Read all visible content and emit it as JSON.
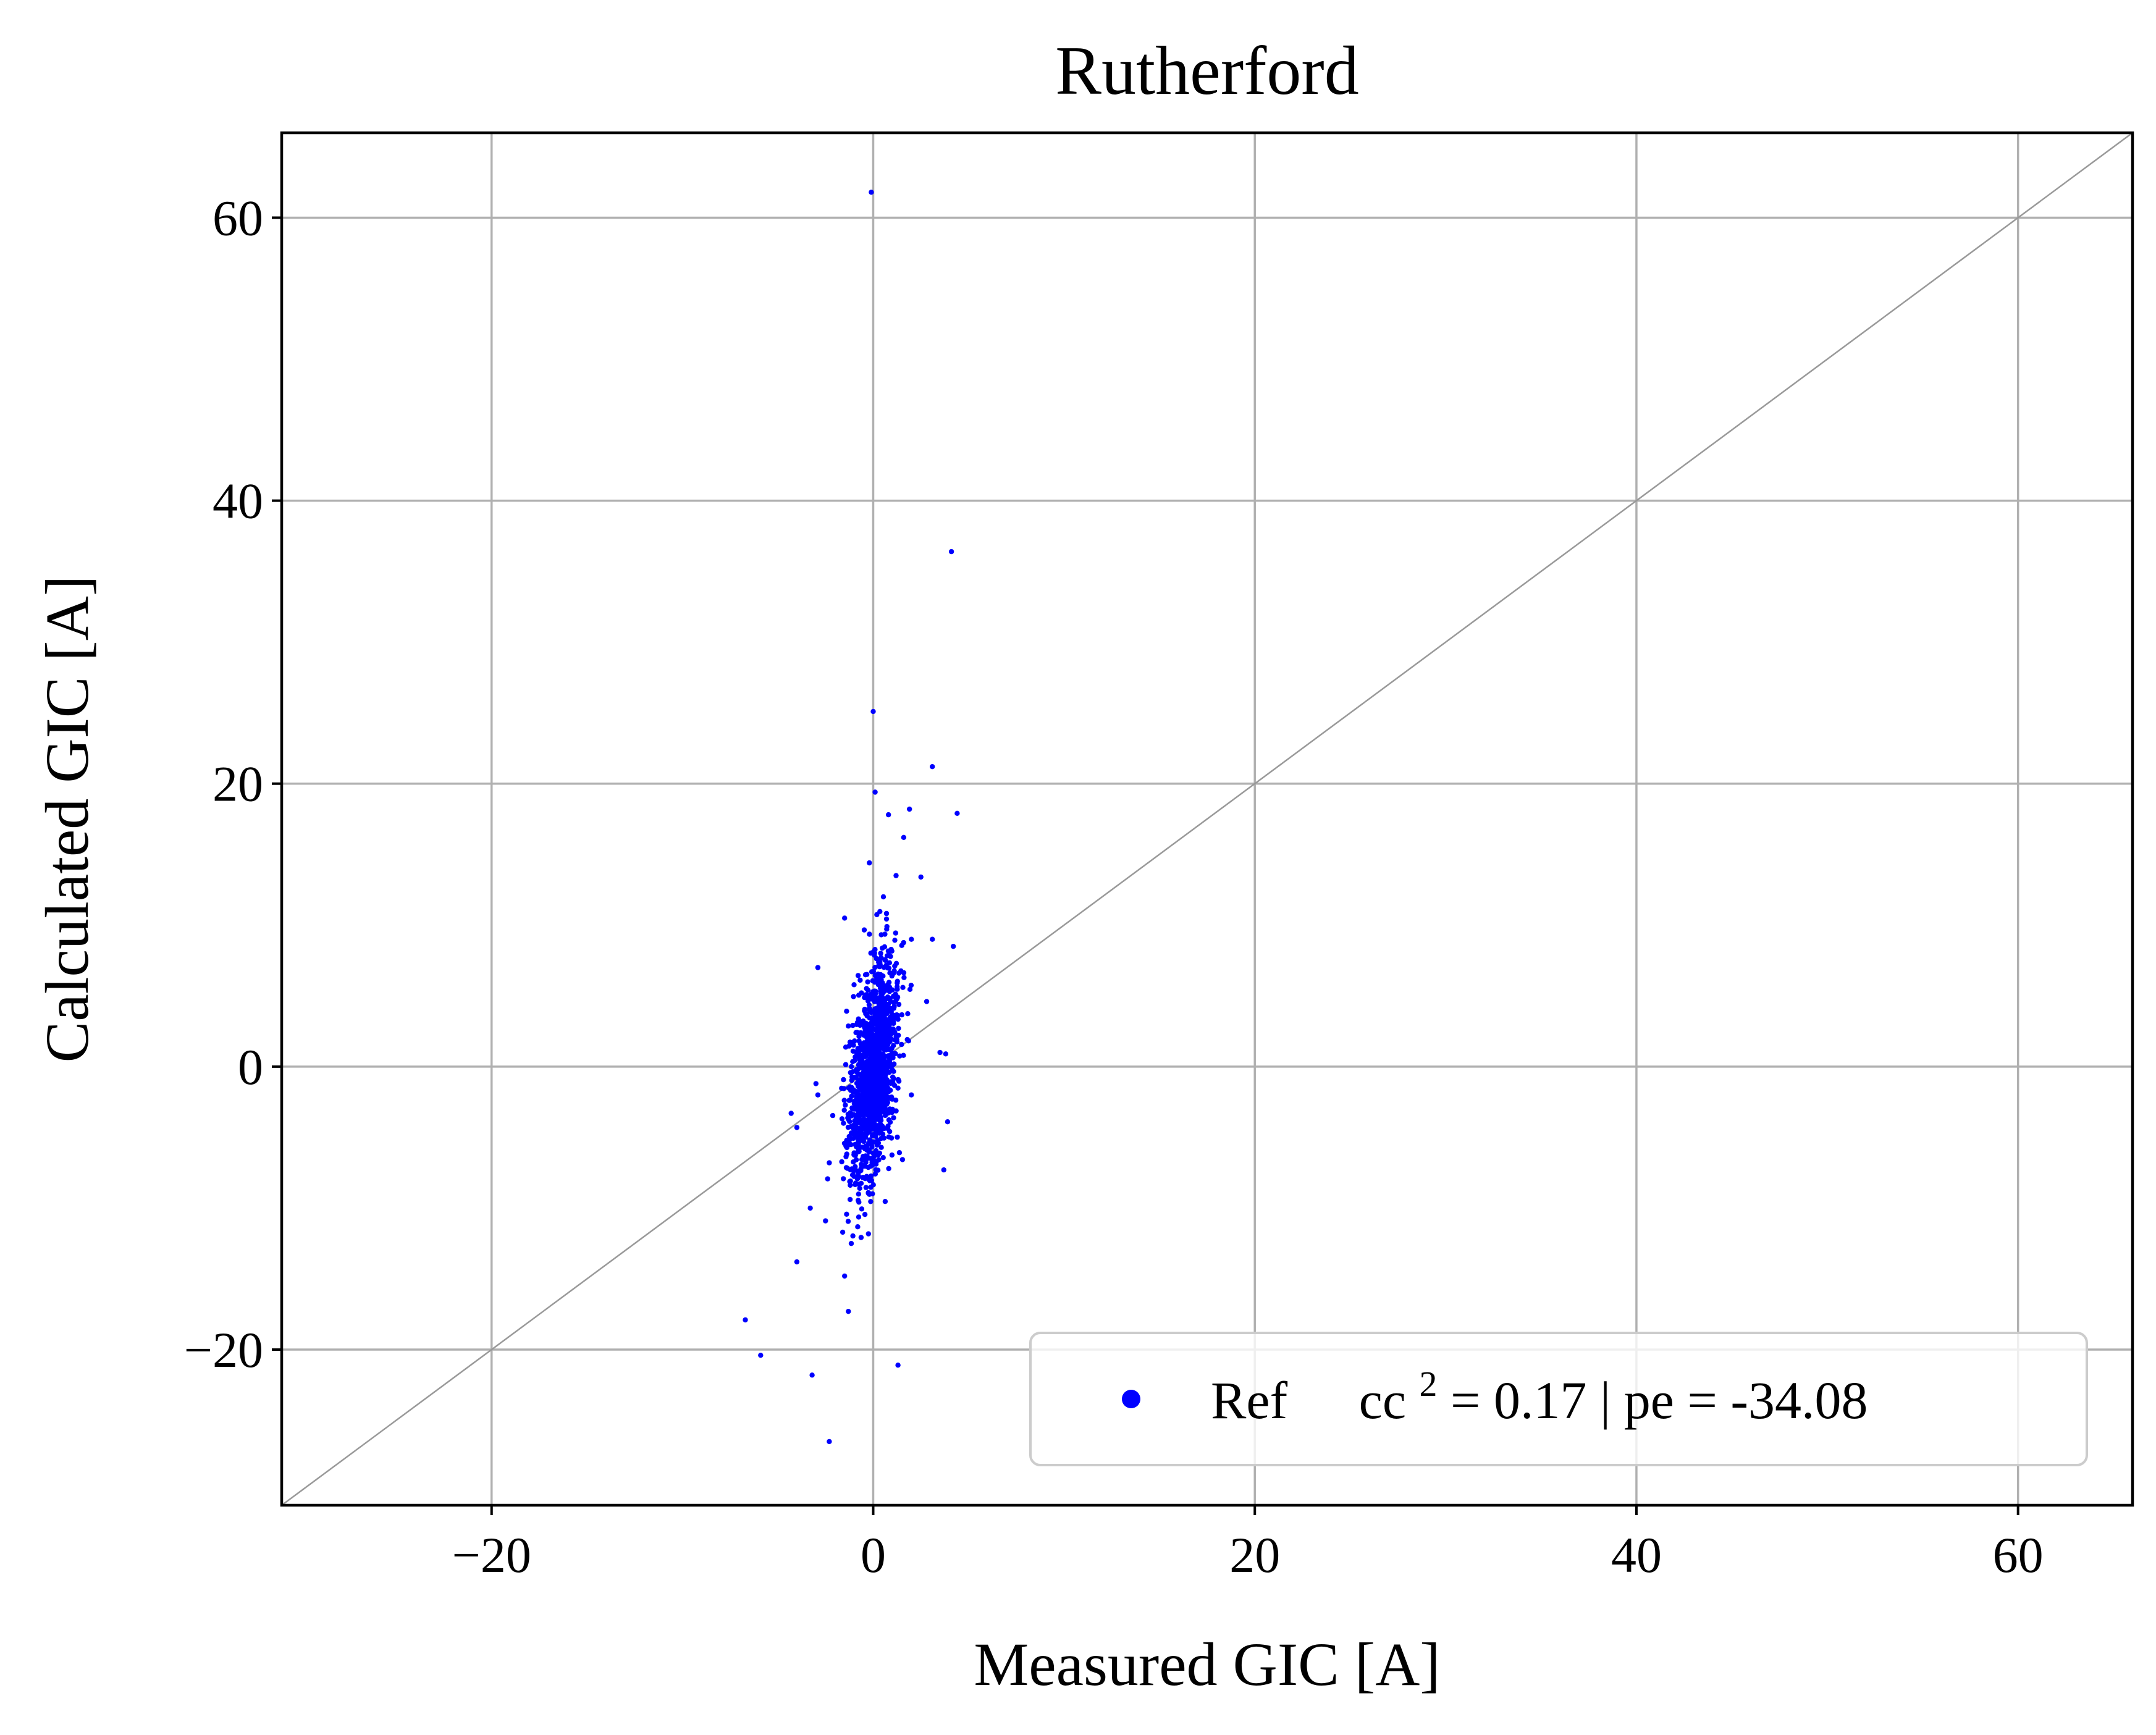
{
  "chart_data": {
    "type": "scatter",
    "title": "Rutherford",
    "xlabel": "Measured GIC [A]",
    "ylabel": "Calculated GIC [A]",
    "xlim": [
      -31,
      66
    ],
    "ylim": [
      -31,
      66
    ],
    "xticks": [
      -20,
      0,
      20,
      40,
      60
    ],
    "yticks": [
      -20,
      0,
      20,
      40,
      60
    ],
    "xtick_labels": [
      "−20",
      "0",
      "20",
      "40",
      "60"
    ],
    "ytick_labels": [
      "−20",
      "0",
      "20",
      "40",
      "60"
    ],
    "grid": true,
    "reference_line": "y = x",
    "legend": {
      "placement": "lower-right",
      "marker_color": "#0000ff",
      "series_label": "Ref",
      "stat_prefix": "cc",
      "stat_superscript": "2",
      "stat_suffix": " = 0.17 | pe = -34.08"
    },
    "series": [
      {
        "name": "Ref",
        "color": "#0000ff",
        "outliers": [
          [
            -0.1,
            61.8
          ],
          [
            4.1,
            36.4
          ],
          [
            0.0,
            25.1
          ],
          [
            3.1,
            21.2
          ],
          [
            4.4,
            17.9
          ],
          [
            0.1,
            19.4
          ],
          [
            1.9,
            18.2
          ],
          [
            0.8,
            17.8
          ],
          [
            1.6,
            16.2
          ],
          [
            -0.2,
            14.4
          ],
          [
            2.5,
            13.4
          ],
          [
            1.2,
            13.5
          ],
          [
            -1.5,
            10.5
          ],
          [
            2.0,
            9.0
          ],
          [
            3.1,
            9.0
          ],
          [
            4.2,
            8.5
          ],
          [
            -2.9,
            7.0
          ],
          [
            2.8,
            4.6
          ],
          [
            3.5,
            1.0
          ],
          [
            3.8,
            0.9
          ],
          [
            2.0,
            -2.0
          ],
          [
            -3.0,
            -1.2
          ],
          [
            -2.9,
            -2.0
          ],
          [
            -4.3,
            -3.3
          ],
          [
            -4.0,
            -4.3
          ],
          [
            -2.3,
            -6.8
          ],
          [
            3.9,
            -3.9
          ],
          [
            3.7,
            -7.3
          ],
          [
            -3.3,
            -10.0
          ],
          [
            -2.5,
            -10.9
          ],
          [
            -1.6,
            -11.7
          ],
          [
            -4.0,
            -13.8
          ],
          [
            -1.5,
            -14.8
          ],
          [
            -1.3,
            -17.3
          ],
          [
            -6.7,
            -17.9
          ],
          [
            -5.9,
            -20.4
          ],
          [
            -3.2,
            -21.8
          ],
          [
            1.3,
            -21.1
          ],
          [
            -2.3,
            -26.5
          ]
        ],
        "cluster": {
          "count": 1400,
          "x_center": 0.0,
          "x_spread": 0.65,
          "y_center": -0.5,
          "y_spread": 3.9,
          "correlation": 0.45
        }
      }
    ]
  }
}
